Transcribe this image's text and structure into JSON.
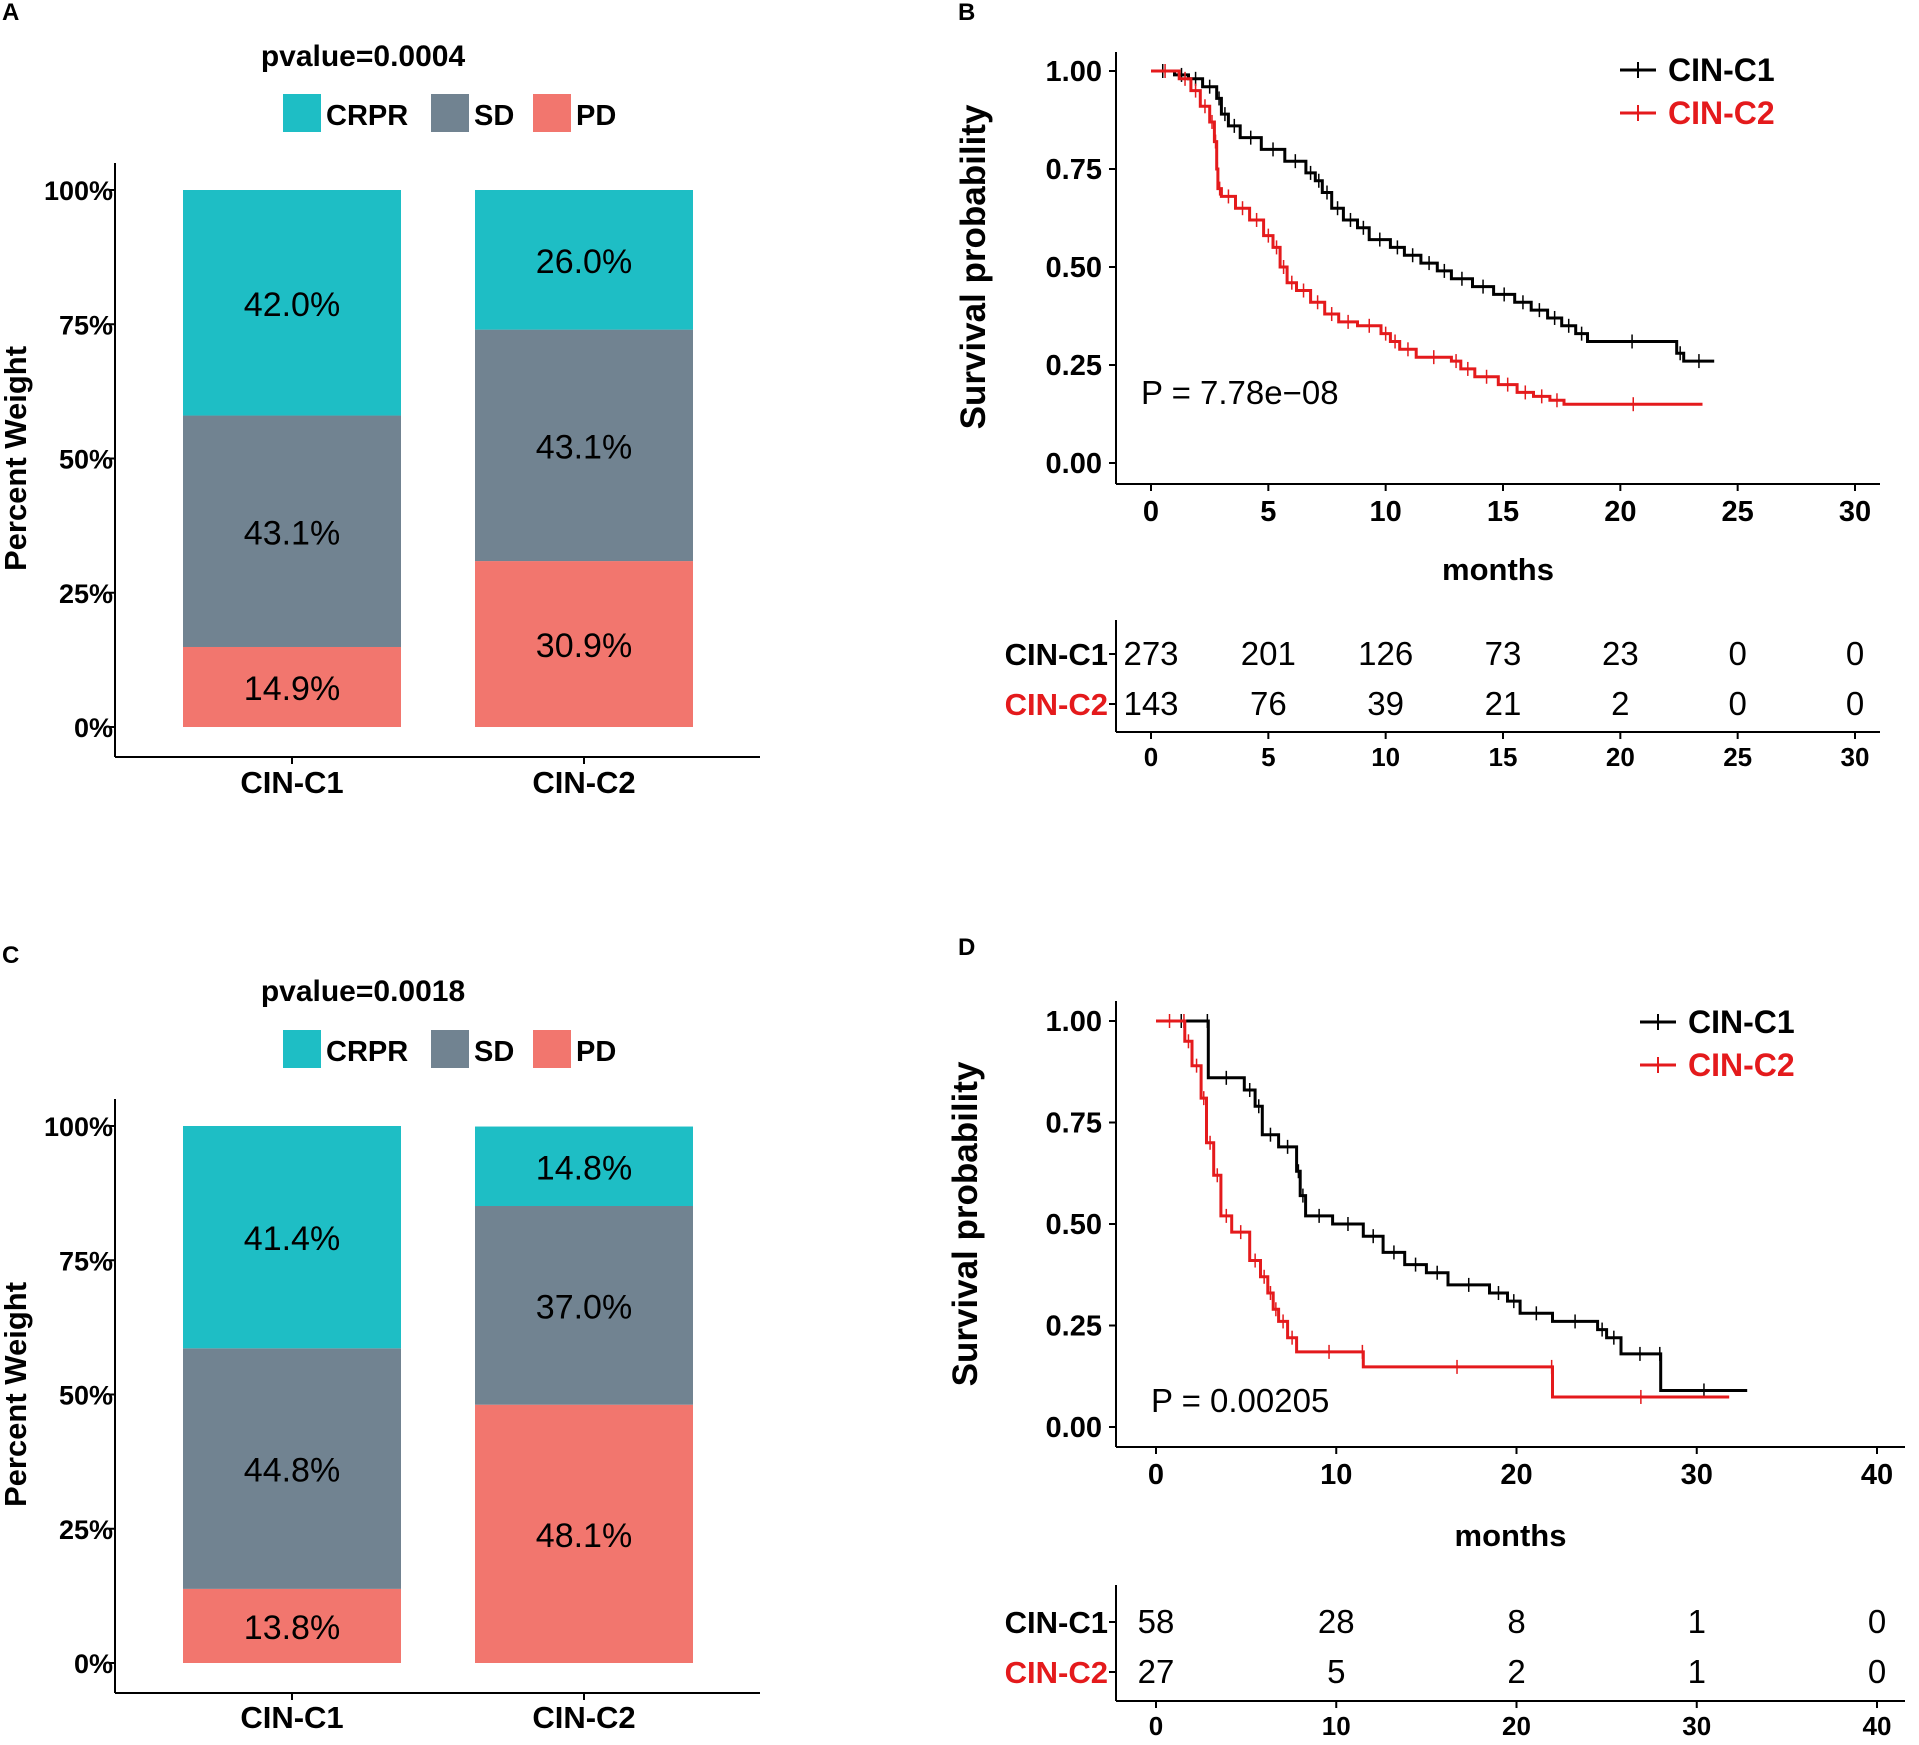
{
  "colors": {
    "crpr": "#1ebec5",
    "sd": "#718391",
    "pd": "#f2766e",
    "c1": "#000000",
    "c2": "#e41a1c"
  },
  "chart_data": [
    {
      "id": "A",
      "type": "bar",
      "stacked": true,
      "panel_label": "A",
      "title": "pvalue=0.0004",
      "legend": [
        "CRPR",
        "SD",
        "PD"
      ],
      "ylabel": "Percent Weight",
      "yticks": [
        "0%",
        "25%",
        "50%",
        "75%",
        "100%"
      ],
      "categories": [
        "CIN-C1",
        "CIN-C2"
      ],
      "series": [
        {
          "name": "PD",
          "values": [
            14.9,
            30.9
          ],
          "labels": [
            "14.9%",
            "30.9%"
          ]
        },
        {
          "name": "SD",
          "values": [
            43.1,
            43.1
          ],
          "labels": [
            "43.1%",
            "43.1%"
          ]
        },
        {
          "name": "CRPR",
          "values": [
            42.0,
            26.0
          ],
          "labels": [
            "42.0%",
            "26.0%"
          ]
        }
      ]
    },
    {
      "id": "B",
      "type": "line",
      "subtype": "kaplan-meier",
      "panel_label": "B",
      "ylabel": "Survival probability",
      "xlabel": "months",
      "xlim": [
        0,
        30
      ],
      "ylim": [
        0,
        1
      ],
      "xticks": [
        0,
        5,
        10,
        15,
        20,
        25,
        30
      ],
      "yticks": [
        "0.00",
        "0.25",
        "0.50",
        "0.75",
        "1.00"
      ],
      "pvalue_text": "P = 7.78e−08",
      "series": [
        {
          "name": "CIN-C1",
          "points": [
            [
              0,
              1.0
            ],
            [
              1.0,
              0.99
            ],
            [
              1.6,
              0.98
            ],
            [
              2.2,
              0.96
            ],
            [
              2.8,
              0.93
            ],
            [
              3.0,
              0.89
            ],
            [
              3.3,
              0.86
            ],
            [
              3.8,
              0.83
            ],
            [
              4.7,
              0.8
            ],
            [
              5.7,
              0.77
            ],
            [
              6.6,
              0.74
            ],
            [
              7.0,
              0.72
            ],
            [
              7.3,
              0.69
            ],
            [
              7.7,
              0.65
            ],
            [
              8.2,
              0.62
            ],
            [
              8.8,
              0.6
            ],
            [
              9.3,
              0.57
            ],
            [
              10.2,
              0.55
            ],
            [
              10.8,
              0.53
            ],
            [
              11.5,
              0.51
            ],
            [
              12.2,
              0.49
            ],
            [
              12.8,
              0.47
            ],
            [
              13.7,
              0.45
            ],
            [
              14.6,
              0.43
            ],
            [
              15.5,
              0.41
            ],
            [
              16.2,
              0.39
            ],
            [
              16.9,
              0.37
            ],
            [
              17.5,
              0.35
            ],
            [
              18.1,
              0.33
            ],
            [
              18.6,
              0.31
            ],
            [
              22.4,
              0.28
            ],
            [
              22.7,
              0.26
            ],
            [
              24.0,
              0.26
            ]
          ]
        },
        {
          "name": "CIN-C2",
          "points": [
            [
              0,
              1.0
            ],
            [
              1.2,
              0.98
            ],
            [
              1.7,
              0.95
            ],
            [
              2.1,
              0.91
            ],
            [
              2.5,
              0.87
            ],
            [
              2.7,
              0.82
            ],
            [
              2.8,
              0.75
            ],
            [
              2.85,
              0.7
            ],
            [
              3.0,
              0.68
            ],
            [
              3.6,
              0.65
            ],
            [
              4.2,
              0.62
            ],
            [
              4.8,
              0.58
            ],
            [
              5.2,
              0.55
            ],
            [
              5.5,
              0.5
            ],
            [
              5.8,
              0.46
            ],
            [
              6.2,
              0.44
            ],
            [
              6.8,
              0.41
            ],
            [
              7.4,
              0.38
            ],
            [
              8.0,
              0.36
            ],
            [
              8.8,
              0.35
            ],
            [
              9.8,
              0.33
            ],
            [
              10.2,
              0.31
            ],
            [
              10.6,
              0.29
            ],
            [
              11.3,
              0.27
            ],
            [
              12.8,
              0.26
            ],
            [
              13.2,
              0.24
            ],
            [
              13.8,
              0.22
            ],
            [
              14.8,
              0.2
            ],
            [
              15.6,
              0.18
            ],
            [
              16.3,
              0.17
            ],
            [
              17.0,
              0.16
            ],
            [
              17.6,
              0.15
            ],
            [
              23.5,
              0.15
            ]
          ]
        }
      ],
      "risk_table": {
        "times": [
          0,
          5,
          10,
          15,
          20,
          25,
          30
        ],
        "rows": [
          {
            "name": "CIN-C1",
            "counts": [
              "273",
              "201",
              "126",
              "73",
              "23",
              "0",
              "0"
            ]
          },
          {
            "name": "CIN-C2",
            "counts": [
              "143",
              "76",
              "39",
              "21",
              "2",
              "0",
              "0"
            ]
          }
        ]
      }
    },
    {
      "id": "C",
      "type": "bar",
      "stacked": true,
      "panel_label": "C",
      "title": "pvalue=0.0018",
      "legend": [
        "CRPR",
        "SD",
        "PD"
      ],
      "ylabel": "Percent Weight",
      "yticks": [
        "0%",
        "25%",
        "50%",
        "75%",
        "100%"
      ],
      "categories": [
        "CIN-C1",
        "CIN-C2"
      ],
      "series": [
        {
          "name": "PD",
          "values": [
            13.8,
            48.1
          ],
          "labels": [
            "13.8%",
            "48.1%"
          ]
        },
        {
          "name": "SD",
          "values": [
            44.8,
            37.0
          ],
          "labels": [
            "44.8%",
            "37.0%"
          ]
        },
        {
          "name": "CRPR",
          "values": [
            41.4,
            14.8
          ],
          "labels": [
            "41.4%",
            "14.8%"
          ]
        }
      ]
    },
    {
      "id": "D",
      "type": "line",
      "subtype": "kaplan-meier",
      "panel_label": "D",
      "ylabel": "Survival probability",
      "xlabel": "months",
      "xlim": [
        0,
        40
      ],
      "ylim": [
        0,
        1
      ],
      "xticks": [
        0,
        10,
        20,
        30,
        40
      ],
      "yticks": [
        "0.00",
        "0.25",
        "0.50",
        "0.75",
        "1.00"
      ],
      "pvalue_text": "P = 0.00205",
      "series": [
        {
          "name": "CIN-C1",
          "points": [
            [
              0,
              1.0
            ],
            [
              2.8,
              1.0
            ],
            [
              2.9,
              0.86
            ],
            [
              4.9,
              0.83
            ],
            [
              5.5,
              0.79
            ],
            [
              5.9,
              0.72
            ],
            [
              6.8,
              0.69
            ],
            [
              7.8,
              0.63
            ],
            [
              8.0,
              0.57
            ],
            [
              8.3,
              0.52
            ],
            [
              9.8,
              0.5
            ],
            [
              11.5,
              0.47
            ],
            [
              12.6,
              0.43
            ],
            [
              13.8,
              0.4
            ],
            [
              15.0,
              0.38
            ],
            [
              16.2,
              0.35
            ],
            [
              18.5,
              0.33
            ],
            [
              19.5,
              0.31
            ],
            [
              20.2,
              0.28
            ],
            [
              22.0,
              0.26
            ],
            [
              24.5,
              0.24
            ],
            [
              25.0,
              0.22
            ],
            [
              25.8,
              0.18
            ],
            [
              27.9,
              0.18
            ],
            [
              28.0,
              0.09
            ],
            [
              32.8,
              0.09
            ]
          ]
        },
        {
          "name": "CIN-C2",
          "points": [
            [
              0,
              1.0
            ],
            [
              1.5,
              1.0
            ],
            [
              1.6,
              0.95
            ],
            [
              2.0,
              0.89
            ],
            [
              2.5,
              0.81
            ],
            [
              2.8,
              0.7
            ],
            [
              3.2,
              0.62
            ],
            [
              3.6,
              0.52
            ],
            [
              4.2,
              0.48
            ],
            [
              5.2,
              0.41
            ],
            [
              5.8,
              0.37
            ],
            [
              6.2,
              0.33
            ],
            [
              6.5,
              0.29
            ],
            [
              6.8,
              0.26
            ],
            [
              7.3,
              0.22
            ],
            [
              7.8,
              0.185
            ],
            [
              11.4,
              0.185
            ],
            [
              11.5,
              0.148
            ],
            [
              21.9,
              0.148
            ],
            [
              22.0,
              0.074
            ],
            [
              31.8,
              0.074
            ]
          ]
        }
      ],
      "risk_table": {
        "times": [
          0,
          10,
          20,
          30,
          40
        ],
        "rows": [
          {
            "name": "CIN-C1",
            "counts": [
              "58",
              "28",
              "8",
              "1",
              "0"
            ]
          },
          {
            "name": "CIN-C2",
            "counts": [
              "27",
              "5",
              "2",
              "1",
              "0"
            ]
          }
        ]
      }
    }
  ]
}
